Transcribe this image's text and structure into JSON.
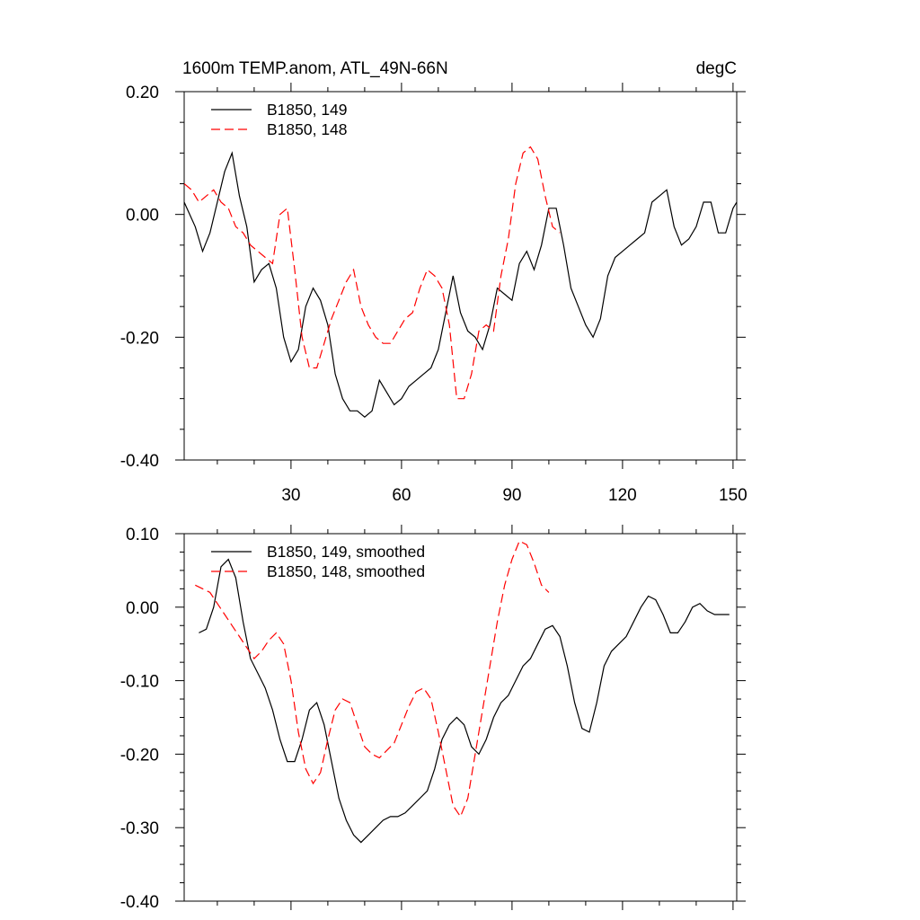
{
  "figure": {
    "title": "1600m TEMP.anom, ATL_49N-66N",
    "units": "degC"
  },
  "chart_data": [
    {
      "type": "line",
      "title": "1600m TEMP.anom, ATL_49N-66N",
      "units_label": "degC",
      "xlabel": "",
      "ylabel": "",
      "xlim": [
        1,
        151
      ],
      "ylim": [
        -0.4,
        0.2
      ],
      "x_ticks": [
        30,
        60,
        90,
        120,
        150
      ],
      "x_tick_labels": [
        "30",
        "60",
        "90",
        "120",
        "150"
      ],
      "y_ticks": [
        -0.4,
        -0.2,
        0.0,
        0.2
      ],
      "y_tick_labels": [
        "-0.40",
        "-0.20",
        "0.00",
        "0.20"
      ],
      "legend_position": "top-left",
      "series": [
        {
          "name": "B1850, 149",
          "color": "#000000",
          "dash": "solid",
          "x": [
            1,
            4,
            6,
            8,
            10,
            12,
            14,
            16,
            18,
            20,
            22,
            24,
            26,
            28,
            30,
            32,
            34,
            36,
            38,
            40,
            42,
            44,
            46,
            48,
            50,
            52,
            54,
            56,
            58,
            60,
            62,
            64,
            66,
            68,
            70,
            72,
            74,
            76,
            78,
            80,
            82,
            84,
            86,
            88,
            90,
            92,
            94,
            96,
            98,
            100,
            102,
            104,
            106,
            108,
            110,
            112,
            114,
            116,
            118,
            120,
            122,
            124,
            126,
            128,
            130,
            132,
            134,
            136,
            138,
            140,
            142,
            144,
            146,
            148,
            150,
            151
          ],
          "values": [
            0.02,
            -0.02,
            -0.06,
            -0.03,
            0.02,
            0.07,
            0.1,
            0.03,
            -0.02,
            -0.11,
            -0.09,
            -0.08,
            -0.12,
            -0.2,
            -0.24,
            -0.22,
            -0.15,
            -0.12,
            -0.14,
            -0.18,
            -0.26,
            -0.3,
            -0.32,
            -0.32,
            -0.33,
            -0.32,
            -0.27,
            -0.29,
            -0.31,
            -0.3,
            -0.28,
            -0.27,
            -0.26,
            -0.25,
            -0.22,
            -0.16,
            -0.1,
            -0.16,
            -0.19,
            -0.2,
            -0.22,
            -0.18,
            -0.12,
            -0.13,
            -0.14,
            -0.08,
            -0.06,
            -0.09,
            -0.05,
            0.01,
            0.01,
            -0.05,
            -0.12,
            -0.15,
            -0.18,
            -0.2,
            -0.17,
            -0.1,
            -0.07,
            -0.06,
            -0.05,
            -0.04,
            -0.03,
            0.02,
            0.03,
            0.04,
            -0.02,
            -0.05,
            -0.04,
            -0.02,
            0.02,
            0.02,
            -0.03,
            -0.03,
            0.01,
            0.02
          ]
        },
        {
          "name": "B1850, 148",
          "color": "#ff0000",
          "dash": "dashed",
          "x": [
            1,
            3,
            5,
            7,
            9,
            11,
            13,
            15,
            17,
            19,
            21,
            23,
            25,
            27,
            29,
            31,
            33,
            35,
            37,
            39,
            41,
            43,
            45,
            47,
            49,
            51,
            53,
            55,
            57,
            59,
            61,
            63,
            65,
            67,
            69,
            71,
            73,
            75,
            77,
            79,
            81,
            83,
            85,
            87,
            89,
            91,
            93,
            95,
            97,
            99,
            101,
            103
          ],
          "values": [
            0.05,
            0.04,
            0.02,
            0.03,
            0.04,
            0.02,
            0.01,
            -0.02,
            -0.03,
            -0.05,
            -0.06,
            -0.07,
            -0.08,
            0.0,
            0.01,
            -0.09,
            -0.2,
            -0.25,
            -0.25,
            -0.21,
            -0.17,
            -0.14,
            -0.11,
            -0.09,
            -0.15,
            -0.18,
            -0.2,
            -0.21,
            -0.21,
            -0.19,
            -0.17,
            -0.16,
            -0.12,
            -0.09,
            -0.1,
            -0.12,
            -0.18,
            -0.3,
            -0.3,
            -0.26,
            -0.19,
            -0.18,
            -0.19,
            -0.1,
            -0.04,
            0.05,
            0.1,
            0.11,
            0.09,
            0.03,
            -0.02,
            -0.03
          ]
        }
      ]
    },
    {
      "type": "line",
      "title": "",
      "xlabel": "",
      "ylabel": "",
      "xlim": [
        1,
        151
      ],
      "ylim": [
        -0.4,
        0.1
      ],
      "x_ticks": [
        30,
        60,
        90,
        120,
        150
      ],
      "x_tick_labels": [],
      "y_ticks": [
        -0.4,
        -0.3,
        -0.2,
        -0.1,
        0.0,
        0.1
      ],
      "y_tick_labels": [
        "-0.40",
        "-0.30",
        "-0.20",
        "-0.10",
        "0.00",
        "0.10"
      ],
      "legend_position": "top-left",
      "series": [
        {
          "name": "B1850, 149, smoothed",
          "color": "#000000",
          "dash": "solid",
          "x": [
            5,
            7,
            9,
            11,
            13,
            15,
            17,
            19,
            21,
            23,
            25,
            27,
            29,
            31,
            33,
            35,
            37,
            39,
            41,
            43,
            45,
            47,
            49,
            51,
            53,
            55,
            57,
            59,
            61,
            63,
            65,
            67,
            69,
            71,
            73,
            75,
            77,
            79,
            81,
            83,
            85,
            87,
            89,
            91,
            93,
            95,
            97,
            99,
            101,
            103,
            105,
            107,
            109,
            111,
            113,
            115,
            117,
            119,
            121,
            123,
            125,
            127,
            129,
            131,
            133,
            135,
            137,
            139,
            141,
            143,
            145,
            147,
            149
          ],
          "values": [
            -0.035,
            -0.03,
            0.0,
            0.055,
            0.065,
            0.04,
            -0.02,
            -0.07,
            -0.09,
            -0.11,
            -0.14,
            -0.18,
            -0.21,
            -0.21,
            -0.18,
            -0.14,
            -0.13,
            -0.16,
            -0.21,
            -0.26,
            -0.29,
            -0.31,
            -0.32,
            -0.31,
            -0.3,
            -0.29,
            -0.285,
            -0.285,
            -0.28,
            -0.27,
            -0.26,
            -0.25,
            -0.22,
            -0.18,
            -0.16,
            -0.15,
            -0.16,
            -0.19,
            -0.2,
            -0.18,
            -0.15,
            -0.13,
            -0.12,
            -0.1,
            -0.08,
            -0.07,
            -0.05,
            -0.03,
            -0.025,
            -0.04,
            -0.08,
            -0.13,
            -0.165,
            -0.17,
            -0.13,
            -0.08,
            -0.06,
            -0.05,
            -0.04,
            -0.02,
            0.0,
            0.015,
            0.01,
            -0.01,
            -0.035,
            -0.035,
            -0.02,
            0.0,
            0.005,
            -0.005,
            -0.01,
            -0.01,
            -0.01
          ]
        },
        {
          "name": "B1850, 148, smoothed",
          "color": "#ff0000",
          "dash": "dashed",
          "x": [
            4,
            6,
            8,
            10,
            12,
            14,
            16,
            18,
            20,
            22,
            24,
            26,
            28,
            30,
            32,
            34,
            36,
            38,
            40,
            42,
            44,
            46,
            48,
            50,
            52,
            54,
            56,
            58,
            60,
            62,
            64,
            66,
            68,
            70,
            72,
            74,
            76,
            78,
            80,
            82,
            84,
            86,
            88,
            90,
            92,
            94,
            96,
            98,
            100
          ],
          "values": [
            0.03,
            0.025,
            0.02,
            0.005,
            -0.01,
            -0.025,
            -0.04,
            -0.055,
            -0.07,
            -0.06,
            -0.045,
            -0.035,
            -0.05,
            -0.1,
            -0.17,
            -0.22,
            -0.24,
            -0.225,
            -0.18,
            -0.14,
            -0.125,
            -0.13,
            -0.16,
            -0.19,
            -0.2,
            -0.205,
            -0.195,
            -0.185,
            -0.16,
            -0.135,
            -0.115,
            -0.11,
            -0.125,
            -0.17,
            -0.22,
            -0.27,
            -0.285,
            -0.26,
            -0.2,
            -0.14,
            -0.08,
            -0.02,
            0.03,
            0.065,
            0.09,
            0.085,
            0.06,
            0.03,
            0.02
          ]
        }
      ]
    }
  ]
}
